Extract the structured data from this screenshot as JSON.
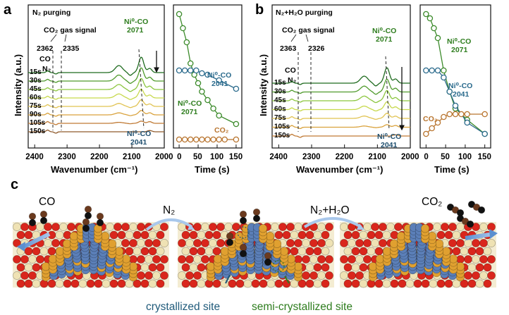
{
  "panel_a": {
    "letter": "a",
    "condition": "N₂ purging",
    "gas_signal_label": "CO₂ gas signal",
    "wn_marks": [
      "2362",
      "2335"
    ],
    "co_label": "CO",
    "n2_label": "N₂",
    "trace_labels": [
      "15s",
      "30s",
      "45s",
      "60s",
      "75s",
      "90s",
      "105s",
      "150s"
    ],
    "peak_top_label": [
      "Ni⁰-CO",
      "2071"
    ],
    "peak_bottom_label": [
      "Ni⁰-CO",
      "2041"
    ],
    "y_axis_label": "Intensity (a.u.)",
    "x_axis_label": "Wavenumber (cm⁻¹)",
    "x_ticks": [
      "2400",
      "2300",
      "2200",
      "2100",
      "2000"
    ]
  },
  "panel_a_kinetics": {
    "label_2041": [
      "Ni⁰-CO",
      "2041"
    ],
    "label_2071": [
      "Ni⁰-CO",
      "2071"
    ],
    "label_co2": "CO₂",
    "x_axis_label": "Time (s)",
    "x_ticks": [
      "0",
      "50",
      "100",
      "150"
    ]
  },
  "panel_b": {
    "letter": "b",
    "condition": "N₂+H₂O purging",
    "gas_signal_label": "CO₂ gas signal",
    "wn_marks": [
      "2363",
      "2326"
    ],
    "co_label": "CO",
    "n2_label": "N₂",
    "trace_labels": [
      "15s",
      "30s",
      "45s",
      "60s",
      "75s",
      "105s",
      "150s"
    ],
    "peak_top_label": [
      "Ni⁰-CO",
      "2071"
    ],
    "peak_bottom_label": [
      "Ni⁰-CO",
      "2041"
    ],
    "y_axis_label": "Intensity (a.u.)",
    "x_axis_label": "Wavenumber (cm⁻¹)",
    "x_ticks": [
      "2400",
      "2300",
      "2200",
      "2100",
      "2000"
    ]
  },
  "panel_b_kinetics": {
    "label_2071": [
      "Ni⁰-CO",
      "2071"
    ],
    "label_2041": [
      "Ni⁰-CO",
      "2041"
    ],
    "label_co2": "CO₂",
    "x_axis_label": "Time (s)",
    "x_ticks": [
      "0",
      "50",
      "100",
      "150"
    ]
  },
  "panel_c": {
    "letter": "c",
    "co_label": "CO",
    "n2_label": "N₂",
    "n2h2o_label": "N₂+H₂O",
    "co2_label": "CO₂",
    "crystallized_label": "crystallized site",
    "semi_label": "semi-crystallized site"
  },
  "colors": {
    "trace_colors": [
      "#1f6b1f",
      "#4f9a2c",
      "#8cc63f",
      "#c7d94c",
      "#e1c352",
      "#d9a23c",
      "#c07a35",
      "#8f5a2c"
    ],
    "series_2071": "#3b8a2a",
    "series_2041": "#2a6a8c",
    "series_co2": "#b8742e",
    "crystallized_text": "#1f5a7a",
    "semi_text": "#2e7d1e",
    "arrow_blue": "#7aa7d6",
    "ni_blue": "#5b7fb8",
    "ni_gold": "#e0a030",
    "o_red": "#d9261c",
    "metal_cream": "#efe2b4"
  },
  "chart_data": [
    {
      "type": "line",
      "title": "N₂ purging",
      "xlabel": "Wavenumber (cm⁻¹)",
      "ylabel": "Intensity (a.u.)",
      "xlim": [
        2420,
        2000
      ],
      "series": [
        {
          "name": "15s"
        },
        {
          "name": "30s"
        },
        {
          "name": "45s"
        },
        {
          "name": "60s"
        },
        {
          "name": "75s"
        },
        {
          "name": "90s"
        },
        {
          "name": "105s"
        },
        {
          "name": "150s"
        }
      ],
      "annotations": [
        "2362",
        "2335",
        "Ni⁰-CO 2071",
        "Ni⁰-CO 2041"
      ]
    },
    {
      "type": "line",
      "xlabel": "Time (s)",
      "xlim": [
        -15,
        165
      ],
      "series": [
        {
          "name": "Ni⁰-CO 2071",
          "x": [
            0,
            10,
            20,
            30,
            40,
            50,
            60,
            75,
            90,
            105,
            150
          ],
          "y": [
            0.95,
            0.85,
            0.75,
            0.6,
            0.52,
            0.46,
            0.4,
            0.34,
            0.28,
            0.23,
            0.17
          ]
        },
        {
          "name": "Ni⁰-CO 2041",
          "x": [
            0,
            15,
            30,
            45,
            60,
            75,
            105,
            150
          ],
          "y": [
            0.55,
            0.55,
            0.55,
            0.55,
            0.53,
            0.52,
            0.48,
            0.42
          ]
        },
        {
          "name": "CO₂",
          "x": [
            0,
            15,
            30,
            45,
            60,
            75,
            90,
            105,
            120,
            150
          ],
          "y": [
            0.06,
            0.06,
            0.06,
            0.06,
            0.06,
            0.06,
            0.06,
            0.06,
            0.06,
            0.06
          ]
        }
      ]
    },
    {
      "type": "line",
      "title": "N₂+H₂O purging",
      "xlabel": "Wavenumber (cm⁻¹)",
      "ylabel": "Intensity (a.u.)",
      "xlim": [
        2420,
        2000
      ],
      "series": [
        {
          "name": "15s"
        },
        {
          "name": "30s"
        },
        {
          "name": "45s"
        },
        {
          "name": "60s"
        },
        {
          "name": "75s"
        },
        {
          "name": "105s"
        },
        {
          "name": "150s"
        }
      ],
      "annotations": [
        "2363",
        "2326",
        "Ni⁰-CO 2071",
        "Ni⁰-CO 2041"
      ]
    },
    {
      "type": "line",
      "xlabel": "Time (s)",
      "xlim": [
        -15,
        165
      ],
      "series": [
        {
          "name": "Ni⁰-CO 2071",
          "x": [
            0,
            10,
            20,
            30,
            45,
            60,
            75,
            105,
            150
          ],
          "y": [
            0.95,
            0.92,
            0.85,
            0.78,
            0.55,
            0.4,
            0.28,
            0.2,
            0.1
          ]
        },
        {
          "name": "Ni⁰-CO 2041",
          "x": [
            0,
            15,
            30,
            45,
            60,
            75,
            105,
            150
          ],
          "y": [
            0.55,
            0.55,
            0.55,
            0.5,
            0.4,
            0.3,
            0.18,
            0.1
          ]
        },
        {
          "name": "CO₂",
          "x": [
            0,
            15,
            30,
            45,
            60,
            75,
            90,
            105,
            150
          ],
          "y": [
            0.1,
            0.14,
            0.18,
            0.22,
            0.24,
            0.24,
            0.24,
            0.24,
            0.24
          ]
        }
      ]
    }
  ]
}
